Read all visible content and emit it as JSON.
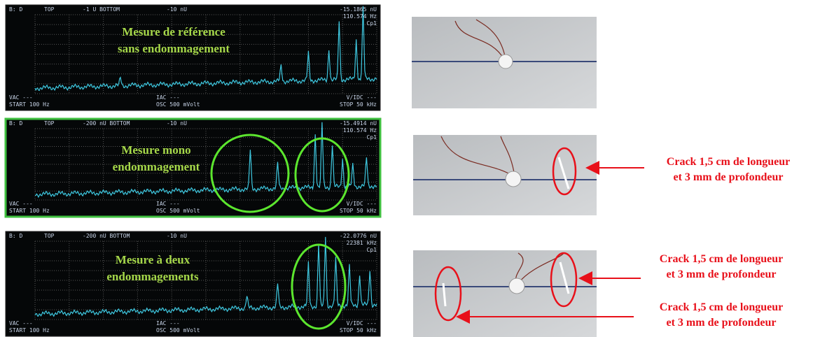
{
  "panels": [
    {
      "header": [
        "B: D",
        "TOP",
        "-1 U BOTTOM",
        "-10 nU"
      ],
      "readout": [
        "-15.1865 nU",
        "110.574 Hz",
        "Cp1"
      ],
      "title": [
        "Mesure de référence",
        "sans endommagement"
      ],
      "footer": [
        "VAC ---",
        "START 100 Hz",
        "IAC ---",
        "OSC 500 mVolt",
        "V/IDC ---",
        "STOP 50 kHz"
      ]
    },
    {
      "header": [
        "B: D",
        "TOP",
        "-200 nU BOTTOM",
        "-10 nU"
      ],
      "readout": [
        "-15.4914 nU",
        "110.574 Hz",
        "Cp1"
      ],
      "title": [
        "Mesure mono",
        "endommagement"
      ],
      "footer": [
        "VAC ---",
        "START 100 Hz",
        "IAC ---",
        "OSC 500 mVolt",
        "V/IDC ---",
        "STOP 50 kHz"
      ]
    },
    {
      "header": [
        "B: D",
        "TOP",
        "-200 nU BOTTOM",
        "-10 nU"
      ],
      "readout": [
        "-22.0776 nU",
        "22381 kHz",
        "Cp1"
      ],
      "title": [
        "Mesure à deux",
        "endommagements"
      ],
      "footer": [
        "VAC ---",
        "START 100 Hz",
        "IAC ---",
        "OSC 500 mVolt",
        "V/IDC ---",
        "STOP 50 kHz"
      ]
    }
  ],
  "annotations": [
    {
      "lines": [
        "Crack 1,5 cm de longueur",
        "et 3 mm de profondeur"
      ]
    },
    {
      "lines": [
        "Crack 1,5 cm de longueur",
        "et 3 mm de profondeur"
      ]
    },
    {
      "lines": [
        "Crack 1,5 cm de longueur",
        "et 3 mm de profondeur"
      ]
    }
  ]
}
